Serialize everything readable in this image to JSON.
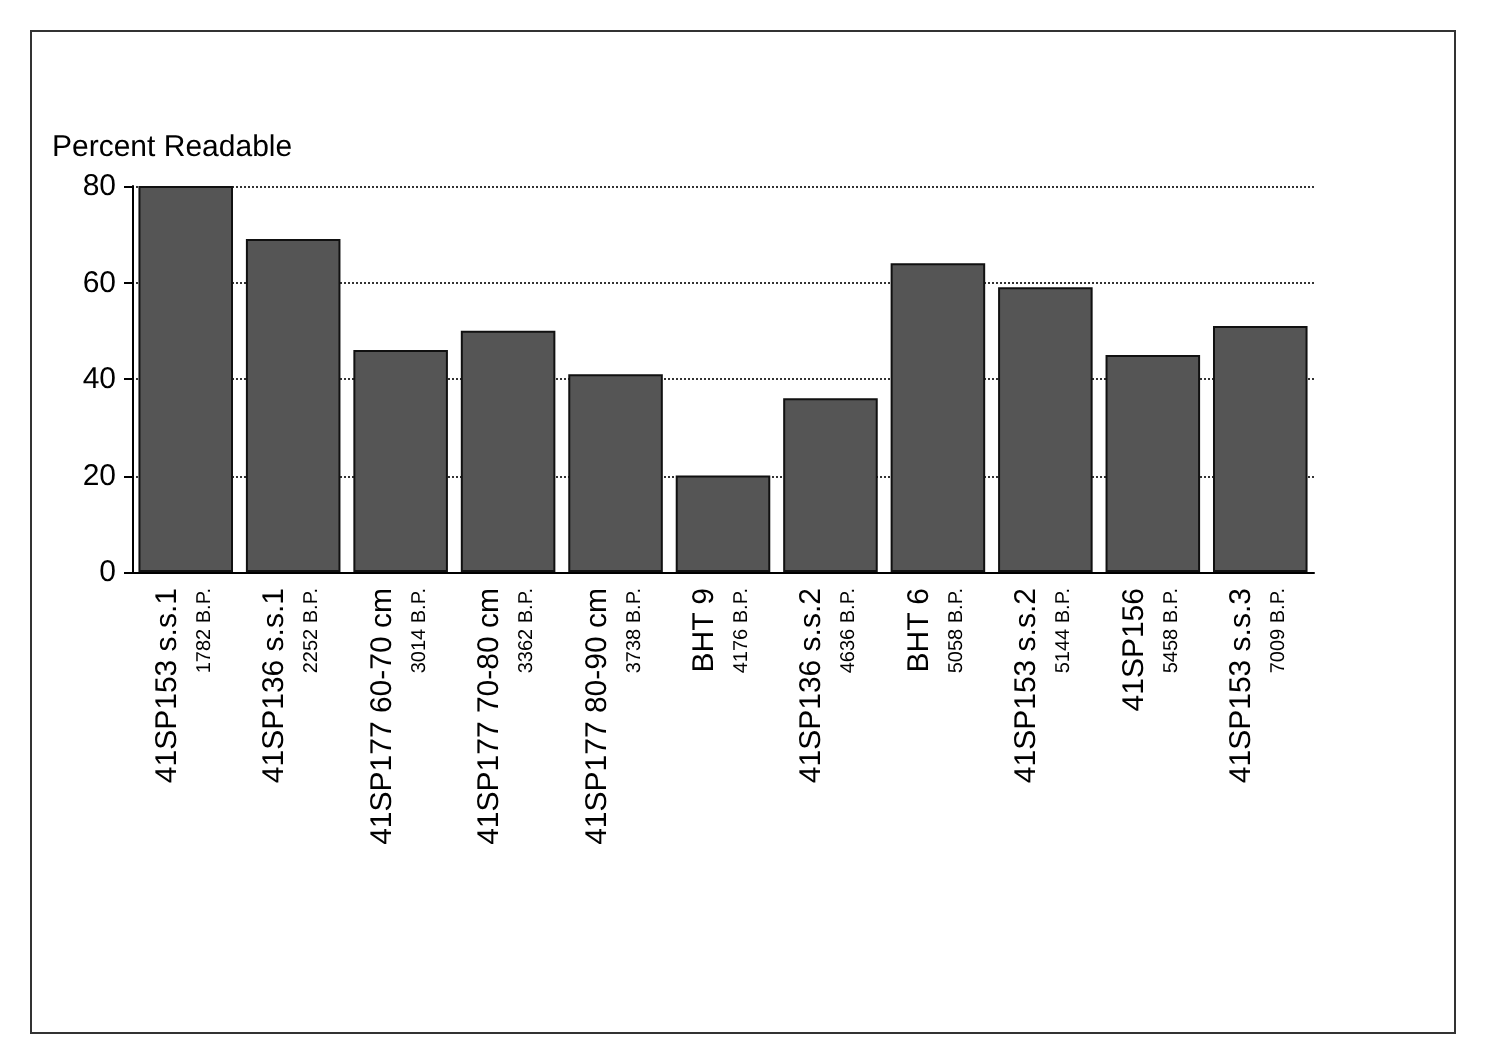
{
  "chart_data": {
    "type": "bar",
    "ylabel": "Percent Readable",
    "categories": [
      "41SP153 s.s.1\n1782 B.P.",
      "41SP136 s.s.1\n2252 B.P.",
      "41SP177 60-70 cm\n3014 B.P.",
      "41SP177 70-80 cm\n3362 B.P.",
      "41SP177 80-90 cm\n3738 B.P.",
      "BHT 9\n4176 B.P.",
      "41SP136 s.s.2\n4636 B.P.",
      "BHT 6\n5058 B.P.",
      "41SP153 s.s.2\n5144 B.P.",
      "41SP156\n5458 B.P.",
      "41SP153 s.s.3\n7009 B.P."
    ],
    "values": [
      80,
      69,
      46,
      50,
      41,
      20,
      36,
      64,
      59,
      45,
      51
    ],
    "color": "#555555",
    "ylim": [
      0,
      80
    ],
    "yticks": [
      0,
      20,
      40,
      60,
      80
    ],
    "grid": "y"
  }
}
